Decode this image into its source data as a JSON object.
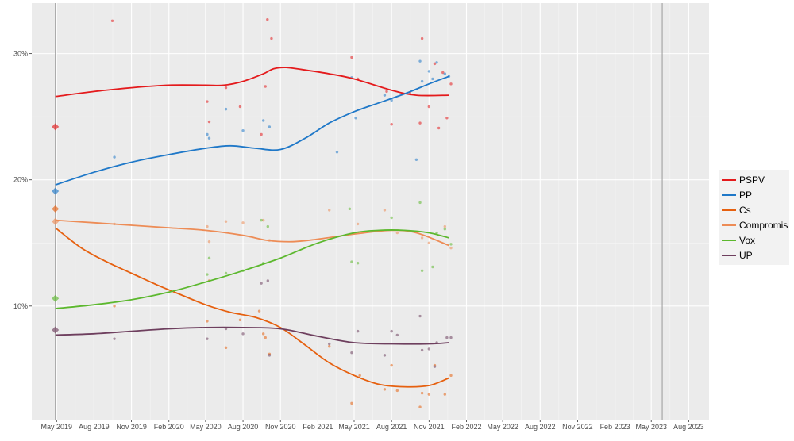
{
  "chart_data": {
    "type": "line",
    "title": "",
    "xlabel": "",
    "ylabel": "",
    "x_range": [
      "2019-03-01",
      "2023-09-20"
    ],
    "ylim": [
      1,
      34
    ],
    "grid": true,
    "legend_position": "right",
    "x_ticks": [
      {
        "date": "2019-05-01",
        "label": "May 2019"
      },
      {
        "date": "2019-08-01",
        "label": "Aug 2019"
      },
      {
        "date": "2019-11-01",
        "label": "Nov 2019"
      },
      {
        "date": "2020-02-01",
        "label": "Feb 2020"
      },
      {
        "date": "2020-05-01",
        "label": "May 2020"
      },
      {
        "date": "2020-08-01",
        "label": "Aug 2020"
      },
      {
        "date": "2020-11-01",
        "label": "Nov 2020"
      },
      {
        "date": "2021-02-01",
        "label": "Feb 2021"
      },
      {
        "date": "2021-05-01",
        "label": "May 2021"
      },
      {
        "date": "2021-08-01",
        "label": "Aug 2021"
      },
      {
        "date": "2021-11-01",
        "label": "Nov 2021"
      },
      {
        "date": "2022-02-01",
        "label": "Feb 2022"
      },
      {
        "date": "2022-05-01",
        "label": "May 2022"
      },
      {
        "date": "2022-08-01",
        "label": "Aug 2022"
      },
      {
        "date": "2022-11-01",
        "label": "Nov 2022"
      },
      {
        "date": "2023-02-01",
        "label": "Feb 2023"
      },
      {
        "date": "2023-05-01",
        "label": "May 2023"
      },
      {
        "date": "2023-08-01",
        "label": "Aug 2023"
      }
    ],
    "y_ticks": [
      {
        "value": 10,
        "label": "10%"
      },
      {
        "value": 20,
        "label": "20%"
      },
      {
        "value": 30,
        "label": "30%"
      }
    ],
    "election_lines": [
      "2019-04-28",
      "2023-05-28"
    ],
    "series": [
      {
        "name": "PSPV",
        "color": "#e41a1c",
        "election": {
          "date": "2019-04-28",
          "value": 24.2
        },
        "trend": [
          [
            "2019-04-28",
            26.6
          ],
          [
            "2019-08-01",
            27.0
          ],
          [
            "2019-11-01",
            27.3
          ],
          [
            "2020-02-01",
            27.5
          ],
          [
            "2020-05-01",
            27.5
          ],
          [
            "2020-06-15",
            27.5
          ],
          [
            "2020-08-01",
            27.8
          ],
          [
            "2020-09-20",
            28.4
          ],
          [
            "2020-10-15",
            28.8
          ],
          [
            "2020-11-15",
            28.9
          ],
          [
            "2021-01-01",
            28.7
          ],
          [
            "2021-03-01",
            28.4
          ],
          [
            "2021-05-01",
            28.0
          ],
          [
            "2021-08-01",
            27.1
          ],
          [
            "2021-10-01",
            26.7
          ],
          [
            "2021-12-20",
            26.7
          ]
        ],
        "polls": [
          [
            "2019-09-15",
            32.6
          ],
          [
            "2020-05-05",
            26.2
          ],
          [
            "2020-05-10",
            24.6
          ],
          [
            "2020-06-20",
            27.3
          ],
          [
            "2020-07-25",
            25.8
          ],
          [
            "2020-09-15",
            23.6
          ],
          [
            "2020-09-25",
            27.4
          ],
          [
            "2020-09-30",
            32.7
          ],
          [
            "2020-10-10",
            31.2
          ],
          [
            "2021-04-25",
            29.7
          ],
          [
            "2021-05-10",
            28.0
          ],
          [
            "2021-07-20",
            27.0
          ],
          [
            "2021-08-01",
            24.4
          ],
          [
            "2021-09-15",
            26.9
          ],
          [
            "2021-10-10",
            24.5
          ],
          [
            "2021-10-15",
            31.2
          ],
          [
            "2021-11-01",
            25.8
          ],
          [
            "2021-11-15",
            29.2
          ],
          [
            "2021-12-05",
            28.5
          ],
          [
            "2021-12-15",
            24.9
          ],
          [
            "2021-12-25",
            27.6
          ],
          [
            "2021-11-25",
            24.1
          ]
        ]
      },
      {
        "name": "PP",
        "color": "#1f78c8",
        "election": {
          "date": "2019-04-28",
          "value": 19.1
        },
        "trend": [
          [
            "2019-04-28",
            19.6
          ],
          [
            "2019-08-01",
            20.6
          ],
          [
            "2019-11-01",
            21.4
          ],
          [
            "2020-02-01",
            22.0
          ],
          [
            "2020-05-01",
            22.5
          ],
          [
            "2020-07-01",
            22.7
          ],
          [
            "2020-09-01",
            22.5
          ],
          [
            "2020-11-01",
            22.4
          ],
          [
            "2021-01-01",
            23.3
          ],
          [
            "2021-03-01",
            24.5
          ],
          [
            "2021-05-01",
            25.4
          ],
          [
            "2021-07-01",
            26.1
          ],
          [
            "2021-09-01",
            26.8
          ],
          [
            "2021-11-01",
            27.6
          ],
          [
            "2021-12-20",
            28.2
          ]
        ],
        "polls": [
          [
            "2019-09-20",
            21.8
          ],
          [
            "2020-05-05",
            23.6
          ],
          [
            "2020-05-10",
            23.3
          ],
          [
            "2020-06-20",
            25.6
          ],
          [
            "2020-08-01",
            23.9
          ],
          [
            "2020-09-20",
            24.7
          ],
          [
            "2020-10-05",
            24.2
          ],
          [
            "2021-03-20",
            22.2
          ],
          [
            "2021-05-05",
            24.9
          ],
          [
            "2021-04-25",
            28.1
          ],
          [
            "2021-08-01",
            26.3
          ],
          [
            "2021-07-15",
            26.7
          ],
          [
            "2021-10-15",
            27.8
          ],
          [
            "2021-10-01",
            21.6
          ],
          [
            "2021-10-10",
            29.4
          ],
          [
            "2021-11-01",
            28.6
          ],
          [
            "2021-11-10",
            28.0
          ],
          [
            "2021-11-20",
            29.3
          ],
          [
            "2021-12-10",
            28.4
          ],
          [
            "2021-12-20",
            28.2
          ]
        ]
      },
      {
        "name": "Cs",
        "color": "#e6600f",
        "election": {
          "date": "2019-04-28",
          "value": 17.7
        },
        "trend": [
          [
            "2019-04-28",
            16.2
          ],
          [
            "2019-07-01",
            14.6
          ],
          [
            "2019-09-01",
            13.5
          ],
          [
            "2019-11-01",
            12.6
          ],
          [
            "2020-01-01",
            11.7
          ],
          [
            "2020-03-01",
            10.9
          ],
          [
            "2020-05-01",
            10.1
          ],
          [
            "2020-07-01",
            9.5
          ],
          [
            "2020-09-01",
            9.1
          ],
          [
            "2020-11-01",
            8.3
          ],
          [
            "2021-01-01",
            6.9
          ],
          [
            "2021-03-01",
            5.5
          ],
          [
            "2021-05-01",
            4.5
          ],
          [
            "2021-07-01",
            3.8
          ],
          [
            "2021-09-01",
            3.6
          ],
          [
            "2021-11-01",
            3.7
          ],
          [
            "2021-12-20",
            4.3
          ]
        ],
        "polls": [
          [
            "2019-09-20",
            10.0
          ],
          [
            "2020-05-05",
            8.8
          ],
          [
            "2020-05-10",
            12.0
          ],
          [
            "2020-06-20",
            6.7
          ],
          [
            "2020-07-25",
            8.9
          ],
          [
            "2020-09-10",
            9.6
          ],
          [
            "2020-09-20",
            7.8
          ],
          [
            "2020-09-25",
            7.5
          ],
          [
            "2020-10-05",
            6.2
          ],
          [
            "2021-03-01",
            6.8
          ],
          [
            "2021-04-25",
            2.3
          ],
          [
            "2021-05-15",
            4.5
          ],
          [
            "2021-07-15",
            3.4
          ],
          [
            "2021-08-01",
            5.3
          ],
          [
            "2021-08-15",
            3.3
          ],
          [
            "2021-10-10",
            2.0
          ],
          [
            "2021-10-15",
            3.1
          ],
          [
            "2021-11-01",
            3.0
          ],
          [
            "2021-11-15",
            5.3
          ],
          [
            "2021-12-10",
            3.0
          ],
          [
            "2021-12-25",
            4.5
          ]
        ]
      },
      {
        "name": "Compromis",
        "color": "#ed8c56",
        "election": {
          "date": "2019-04-28",
          "value": 16.7
        },
        "trend": [
          [
            "2019-04-28",
            16.8
          ],
          [
            "2019-08-01",
            16.6
          ],
          [
            "2019-11-01",
            16.4
          ],
          [
            "2020-02-01",
            16.2
          ],
          [
            "2020-05-01",
            16.0
          ],
          [
            "2020-08-01",
            15.6
          ],
          [
            "2020-10-01",
            15.2
          ],
          [
            "2020-12-01",
            15.1
          ],
          [
            "2021-02-01",
            15.3
          ],
          [
            "2021-05-01",
            15.7
          ],
          [
            "2021-08-01",
            16.0
          ],
          [
            "2021-10-01",
            15.8
          ],
          [
            "2021-12-20",
            14.8
          ]
        ],
        "polls": [
          [
            "2019-09-20",
            16.5
          ],
          [
            "2020-05-05",
            16.3
          ],
          [
            "2020-05-10",
            15.1
          ],
          [
            "2020-06-20",
            16.7
          ],
          [
            "2020-08-01",
            16.6
          ],
          [
            "2020-09-20",
            16.8
          ],
          [
            "2020-10-05",
            15.2
          ],
          [
            "2021-03-01",
            17.6
          ],
          [
            "2021-05-10",
            16.5
          ],
          [
            "2021-07-15",
            17.6
          ],
          [
            "2021-08-15",
            15.8
          ],
          [
            "2021-10-15",
            15.4
          ],
          [
            "2021-11-01",
            15.0
          ],
          [
            "2021-12-10",
            16.3
          ],
          [
            "2021-12-25",
            14.6
          ]
        ]
      },
      {
        "name": "Vox",
        "color": "#5cb82e",
        "election": {
          "date": "2019-04-28",
          "value": 10.6
        },
        "trend": [
          [
            "2019-04-28",
            9.8
          ],
          [
            "2019-08-01",
            10.1
          ],
          [
            "2019-11-01",
            10.5
          ],
          [
            "2020-02-01",
            11.1
          ],
          [
            "2020-05-01",
            11.9
          ],
          [
            "2020-08-01",
            12.8
          ],
          [
            "2020-11-01",
            13.8
          ],
          [
            "2021-02-01",
            15.0
          ],
          [
            "2021-05-01",
            15.8
          ],
          [
            "2021-07-01",
            16.0
          ],
          [
            "2021-09-01",
            16.0
          ],
          [
            "2021-11-01",
            15.8
          ],
          [
            "2021-12-20",
            15.4
          ]
        ],
        "polls": [
          [
            "2020-05-05",
            12.5
          ],
          [
            "2020-05-10",
            13.8
          ],
          [
            "2020-06-20",
            12.6
          ],
          [
            "2020-08-01",
            12.8
          ],
          [
            "2020-09-15",
            16.8
          ],
          [
            "2020-09-20",
            13.4
          ],
          [
            "2020-10-01",
            16.3
          ],
          [
            "2021-04-25",
            13.5
          ],
          [
            "2021-05-10",
            13.4
          ],
          [
            "2021-04-20",
            17.7
          ],
          [
            "2021-08-01",
            17.0
          ],
          [
            "2021-10-10",
            18.2
          ],
          [
            "2021-10-15",
            12.8
          ],
          [
            "2021-11-10",
            13.1
          ],
          [
            "2021-11-20",
            15.8
          ],
          [
            "2021-12-10",
            16.1
          ],
          [
            "2021-12-25",
            14.9
          ]
        ]
      },
      {
        "name": "UP",
        "color": "#6e3f5e",
        "election": {
          "date": "2019-04-28",
          "value": 8.1
        },
        "trend": [
          [
            "2019-04-28",
            7.7
          ],
          [
            "2019-08-01",
            7.8
          ],
          [
            "2019-11-01",
            8.0
          ],
          [
            "2020-02-01",
            8.2
          ],
          [
            "2020-05-01",
            8.3
          ],
          [
            "2020-08-01",
            8.3
          ],
          [
            "2020-11-01",
            8.2
          ],
          [
            "2021-02-01",
            7.6
          ],
          [
            "2021-05-01",
            7.1
          ],
          [
            "2021-08-01",
            7.0
          ],
          [
            "2021-11-01",
            7.0
          ],
          [
            "2021-12-20",
            7.1
          ]
        ],
        "polls": [
          [
            "2019-09-20",
            7.4
          ],
          [
            "2020-05-05",
            7.4
          ],
          [
            "2020-06-20",
            8.2
          ],
          [
            "2020-08-01",
            7.8
          ],
          [
            "2020-09-15",
            11.8
          ],
          [
            "2020-10-01",
            12.0
          ],
          [
            "2020-10-05",
            6.1
          ],
          [
            "2021-03-01",
            7.0
          ],
          [
            "2021-04-25",
            6.3
          ],
          [
            "2021-05-10",
            8.0
          ],
          [
            "2021-07-15",
            6.1
          ],
          [
            "2021-08-01",
            8.0
          ],
          [
            "2021-08-15",
            7.7
          ],
          [
            "2021-10-10",
            9.2
          ],
          [
            "2021-10-15",
            6.5
          ],
          [
            "2021-11-01",
            6.6
          ],
          [
            "2021-11-15",
            5.2
          ],
          [
            "2021-11-20",
            7.1
          ],
          [
            "2021-12-15",
            7.5
          ],
          [
            "2021-12-25",
            7.5
          ]
        ]
      }
    ]
  }
}
